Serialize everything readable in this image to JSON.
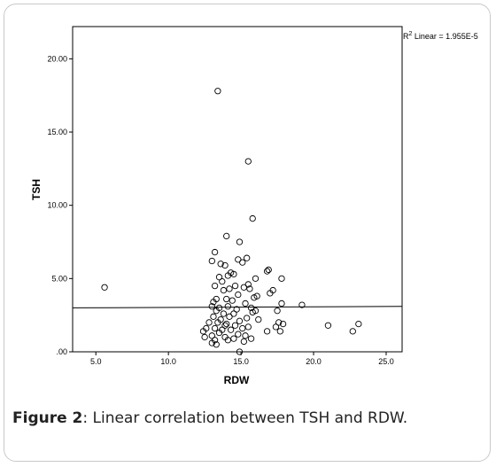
{
  "caption": {
    "label": "Figure 2",
    "text": ": Linear correlation between TSH and RDW."
  },
  "chart_data": {
    "type": "scatter",
    "xlabel": "RDW",
    "ylabel": "TSH",
    "xlim": [
      3.4,
      26.1
    ],
    "ylim": [
      0,
      22.2
    ],
    "xticks": [
      5.0,
      10.0,
      15.0,
      20.0,
      25.0
    ],
    "xtick_labels": [
      "5.0",
      "10.0",
      "15.0",
      "20.0",
      "25.0"
    ],
    "yticks": [
      0,
      5,
      10,
      15,
      20
    ],
    "ytick_labels": [
      ".00",
      "5.00",
      "10.00",
      "15.00",
      "20.00"
    ],
    "annotation": {
      "sup": "2",
      "prefix": "R",
      "text": " Linear = 1.955E-5"
    },
    "fit_line": {
      "x": [
        3.4,
        26.1
      ],
      "y": [
        3.0,
        3.1
      ]
    },
    "marker_color": "#000000",
    "points": [
      {
        "x": 13.4,
        "y": 17.8
      },
      {
        "x": 15.5,
        "y": 13.0
      },
      {
        "x": 15.8,
        "y": 9.1
      },
      {
        "x": 14.0,
        "y": 7.9
      },
      {
        "x": 14.9,
        "y": 7.5
      },
      {
        "x": 13.2,
        "y": 6.8
      },
      {
        "x": 13.0,
        "y": 6.2
      },
      {
        "x": 14.8,
        "y": 6.3
      },
      {
        "x": 15.4,
        "y": 6.4
      },
      {
        "x": 15.1,
        "y": 6.1
      },
      {
        "x": 13.6,
        "y": 6.0
      },
      {
        "x": 13.9,
        "y": 5.9
      },
      {
        "x": 16.8,
        "y": 5.5
      },
      {
        "x": 16.9,
        "y": 5.6
      },
      {
        "x": 14.3,
        "y": 5.4
      },
      {
        "x": 14.5,
        "y": 5.3
      },
      {
        "x": 14.1,
        "y": 5.2
      },
      {
        "x": 13.5,
        "y": 5.1
      },
      {
        "x": 16.0,
        "y": 5.0
      },
      {
        "x": 17.8,
        "y": 5.0
      },
      {
        "x": 13.7,
        "y": 4.8
      },
      {
        "x": 15.5,
        "y": 4.6
      },
      {
        "x": 5.6,
        "y": 4.4
      },
      {
        "x": 13.2,
        "y": 4.5
      },
      {
        "x": 14.6,
        "y": 4.5
      },
      {
        "x": 15.2,
        "y": 4.4
      },
      {
        "x": 15.6,
        "y": 4.3
      },
      {
        "x": 13.8,
        "y": 4.2
      },
      {
        "x": 14.2,
        "y": 4.3
      },
      {
        "x": 17.2,
        "y": 4.2
      },
      {
        "x": 17.0,
        "y": 4.0
      },
      {
        "x": 14.8,
        "y": 3.9
      },
      {
        "x": 16.1,
        "y": 3.8
      },
      {
        "x": 13.3,
        "y": 3.6
      },
      {
        "x": 14.0,
        "y": 3.6
      },
      {
        "x": 15.9,
        "y": 3.7
      },
      {
        "x": 13.1,
        "y": 3.4
      },
      {
        "x": 14.4,
        "y": 3.5
      },
      {
        "x": 17.8,
        "y": 3.3
      },
      {
        "x": 19.2,
        "y": 3.2
      },
      {
        "x": 15.3,
        "y": 3.3
      },
      {
        "x": 13.0,
        "y": 3.1
      },
      {
        "x": 13.5,
        "y": 3.0
      },
      {
        "x": 14.1,
        "y": 3.1
      },
      {
        "x": 15.7,
        "y": 3.0
      },
      {
        "x": 14.7,
        "y": 2.9
      },
      {
        "x": 13.3,
        "y": 2.8
      },
      {
        "x": 16.0,
        "y": 2.8
      },
      {
        "x": 17.5,
        "y": 2.8
      },
      {
        "x": 13.8,
        "y": 2.6
      },
      {
        "x": 14.5,
        "y": 2.6
      },
      {
        "x": 15.8,
        "y": 2.7
      },
      {
        "x": 13.1,
        "y": 2.4
      },
      {
        "x": 14.2,
        "y": 2.4
      },
      {
        "x": 15.4,
        "y": 2.3
      },
      {
        "x": 13.6,
        "y": 2.2
      },
      {
        "x": 14.9,
        "y": 2.1
      },
      {
        "x": 16.2,
        "y": 2.2
      },
      {
        "x": 12.8,
        "y": 2.0
      },
      {
        "x": 13.4,
        "y": 2.0
      },
      {
        "x": 14.0,
        "y": 1.9
      },
      {
        "x": 17.6,
        "y": 2.0
      },
      {
        "x": 17.9,
        "y": 1.9
      },
      {
        "x": 21.0,
        "y": 1.8
      },
      {
        "x": 23.1,
        "y": 1.9
      },
      {
        "x": 13.9,
        "y": 1.8
      },
      {
        "x": 14.6,
        "y": 1.8
      },
      {
        "x": 15.5,
        "y": 1.7
      },
      {
        "x": 17.4,
        "y": 1.7
      },
      {
        "x": 12.6,
        "y": 1.6
      },
      {
        "x": 13.2,
        "y": 1.6
      },
      {
        "x": 13.7,
        "y": 1.5
      },
      {
        "x": 14.3,
        "y": 1.5
      },
      {
        "x": 15.1,
        "y": 1.6
      },
      {
        "x": 16.8,
        "y": 1.4
      },
      {
        "x": 17.7,
        "y": 1.4
      },
      {
        "x": 22.7,
        "y": 1.4
      },
      {
        "x": 12.4,
        "y": 1.4
      },
      {
        "x": 13.5,
        "y": 1.3
      },
      {
        "x": 14.8,
        "y": 1.2
      },
      {
        "x": 15.3,
        "y": 1.1
      },
      {
        "x": 12.5,
        "y": 1.0
      },
      {
        "x": 13.0,
        "y": 1.1
      },
      {
        "x": 13.9,
        "y": 1.0
      },
      {
        "x": 14.5,
        "y": 0.9
      },
      {
        "x": 15.7,
        "y": 0.9
      },
      {
        "x": 13.2,
        "y": 0.8
      },
      {
        "x": 14.1,
        "y": 0.8
      },
      {
        "x": 15.2,
        "y": 0.7
      },
      {
        "x": 13.0,
        "y": 0.6
      },
      {
        "x": 13.3,
        "y": 0.5
      },
      {
        "x": 14.9,
        "y": 0.0
      }
    ]
  }
}
